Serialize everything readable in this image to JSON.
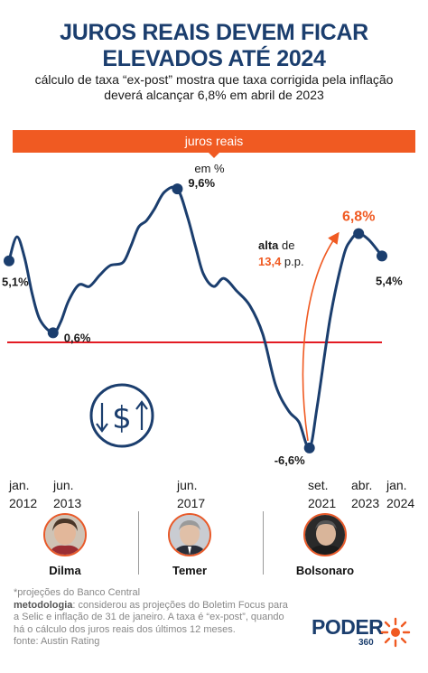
{
  "header": {
    "title_line1": "JUROS REAIS DEVEM FICAR",
    "title_line2": "ELEVADOS ATÉ 2024",
    "subtitle_line1": "cálculo de taxa “ex-post” mostra que taxa corrigida pela inflação",
    "subtitle_line2": "deverá alcançar 6,8% em abril de 2023"
  },
  "banner": {
    "label": "juros reais"
  },
  "unit_label": "em %",
  "annotation": {
    "line1_bold": "alta",
    "line1_rest": " de",
    "line2_value": "13,4",
    "line2_rest": " p.p."
  },
  "chart_data": {
    "type": "line",
    "title": "juros reais",
    "ylabel": "em %",
    "x_labels": [
      {
        "month": "jan.",
        "year": "2012"
      },
      {
        "month": "jun.",
        "year": "2013"
      },
      {
        "month": "jun.",
        "year": "2017"
      },
      {
        "month": "set.",
        "year": "2021"
      },
      {
        "month": "abr.",
        "year": "2023"
      },
      {
        "month": "jan.",
        "year": "2024"
      }
    ],
    "series": [
      {
        "values": [
          [
            "2012-01",
            5.1
          ],
          [
            "2012-04",
            6.6
          ],
          [
            "2012-07",
            5.3
          ],
          [
            "2012-10",
            3.0
          ],
          [
            "2013-01",
            1.4
          ],
          [
            "2013-06",
            0.6
          ],
          [
            "2013-09",
            1.3
          ],
          [
            "2013-12",
            2.6
          ],
          [
            "2014-04",
            3.6
          ],
          [
            "2014-08",
            3.5
          ],
          [
            "2014-12",
            4.2
          ],
          [
            "2015-04",
            4.8
          ],
          [
            "2015-09",
            5.0
          ],
          [
            "2015-12",
            6.0
          ],
          [
            "2016-03",
            7.2
          ],
          [
            "2016-06",
            7.6
          ],
          [
            "2016-09",
            8.3
          ],
          [
            "2017-01",
            9.4
          ],
          [
            "2017-06",
            9.6
          ],
          [
            "2017-10",
            7.8
          ],
          [
            "2018-01",
            6.0
          ],
          [
            "2018-04",
            4.3
          ],
          [
            "2018-08",
            3.5
          ],
          [
            "2018-12",
            4.0
          ],
          [
            "2019-05",
            3.2
          ],
          [
            "2019-10",
            2.3
          ],
          [
            "2020-03",
            0.5
          ],
          [
            "2020-08",
            -2.7
          ],
          [
            "2021-01",
            -4.3
          ],
          [
            "2021-05",
            -5.0
          ],
          [
            "2021-09",
            -6.6
          ],
          [
            "2021-12",
            -4.0
          ],
          [
            "2022-05",
            1.5
          ],
          [
            "2022-10",
            5.3
          ],
          [
            "2023-01",
            6.4
          ],
          [
            "2023-04",
            6.8
          ],
          [
            "2023-08",
            6.4
          ],
          [
            "2024-01",
            5.4
          ]
        ]
      }
    ],
    "highlighted_points": [
      {
        "label": "5,1%",
        "date": "2012-01",
        "value": 5.1
      },
      {
        "label": "0,6%",
        "date": "2013-06",
        "value": 0.6
      },
      {
        "label": "9,6%",
        "date": "2017-06",
        "value": 9.6
      },
      {
        "label": "-6,6%",
        "date": "2021-09",
        "value": -6.6
      },
      {
        "label": "6,8%",
        "date": "2023-04",
        "value": 6.8,
        "color": "#f05a22"
      },
      {
        "label": "5,4%",
        "date": "2024-01",
        "value": 5.4
      }
    ],
    "reference_line": {
      "value": 0,
      "color": "#e31b23"
    },
    "line_color": "#1b3e6e"
  },
  "presidents": [
    {
      "name": "Dilma",
      "portrait_icon": "portrait-dilma-icon"
    },
    {
      "name": "Temer",
      "portrait_icon": "portrait-temer-icon"
    },
    {
      "name": "Bolsonaro",
      "portrait_icon": "portrait-bolsonaro-icon"
    }
  ],
  "notes": {
    "projections": "*projeções do Banco Central",
    "method_label": "metodologia",
    "method_text": ": considerou as projeções do Boletim Focus para a Selic e inflação de 31 de janeiro. A taxa é “ex-post”, quando há o cálculo dos juros reais dos últimos 12 meses.",
    "source": "fonte: Austin Rating"
  },
  "brand": {
    "word": "PODER",
    "number": "360"
  },
  "colors": {
    "navy": "#1b3e6e",
    "orange": "#f05a22",
    "red": "#e31b23"
  }
}
